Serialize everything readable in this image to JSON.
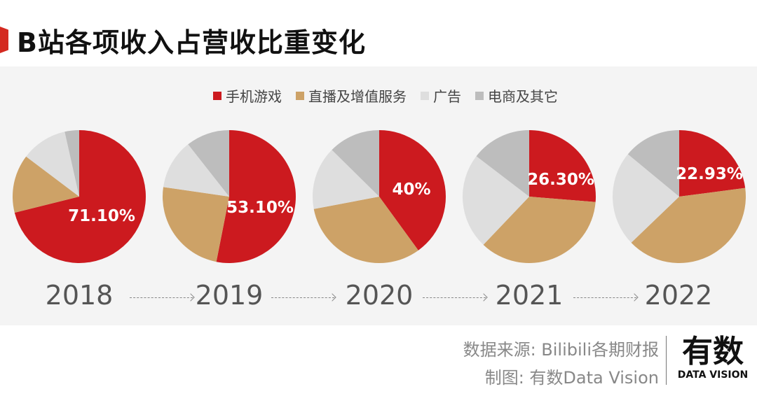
{
  "title": "B站各项收入占营收比重变化",
  "legend": [
    {
      "label": "手机游戏",
      "color": "#cc1a1f"
    },
    {
      "label": "直播及增值服务",
      "color": "#cda267"
    },
    {
      "label": "广告",
      "color": "#dedede"
    },
    {
      "label": "电商及其它",
      "color": "#bdbdbd"
    }
  ],
  "chart_data": {
    "type": "pie",
    "title": "B站各项收入占营收比重变化",
    "series_names": [
      "手机游戏",
      "直播及增值服务",
      "广告",
      "电商及其它"
    ],
    "pies": [
      {
        "year": "2018",
        "label": "71.10%",
        "values": [
          71.1,
          14.2,
          11.2,
          3.5
        ]
      },
      {
        "year": "2019",
        "label": "53.10%",
        "values": [
          53.1,
          24.2,
          12.1,
          10.6
        ]
      },
      {
        "year": "2020",
        "label": "40%",
        "values": [
          40.0,
          32.0,
          15.4,
          12.6
        ]
      },
      {
        "year": "2021",
        "label": "26.30%",
        "values": [
          26.3,
          35.8,
          23.3,
          14.6
        ]
      },
      {
        "year": "2022",
        "label": "22.93%",
        "values": [
          22.93,
          39.9,
          23.2,
          14.0
        ]
      }
    ]
  },
  "footer": {
    "source": "数据来源: Bilibili各期财报",
    "made_by": "制图: 有数Data Vision",
    "logo_cn": "有数",
    "logo_en": "DATA VISION"
  }
}
